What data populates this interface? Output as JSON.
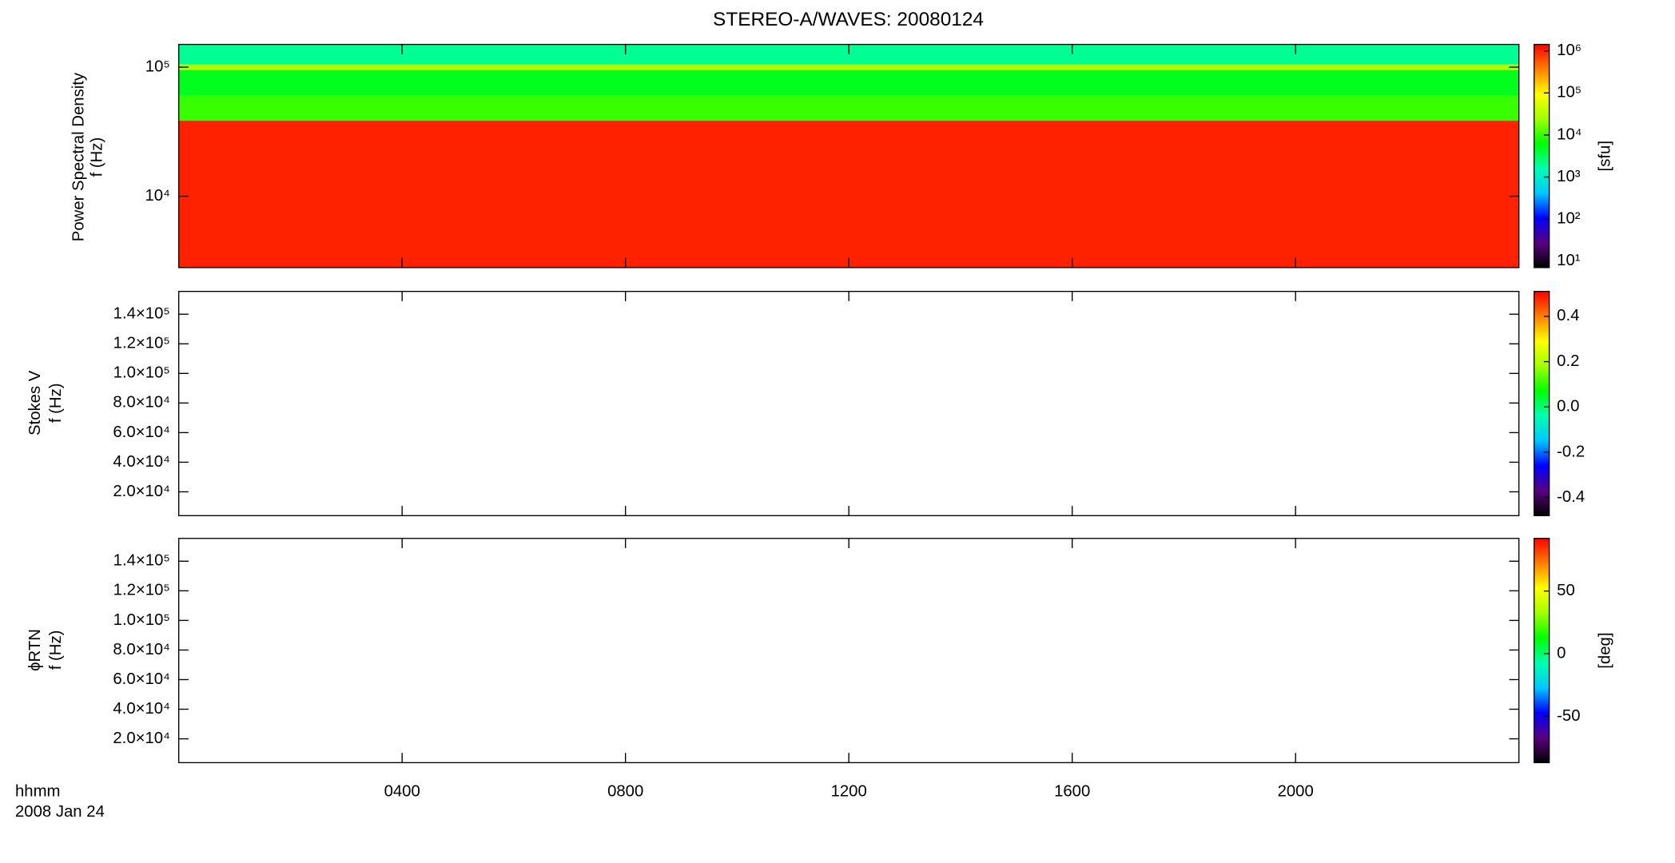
{
  "chart_data": [
    {
      "type": "spectrogram",
      "title": "STEREO-A/WAVES: 20080124",
      "ylabel": [
        "Power Spectral Density",
        "f (Hz)"
      ],
      "xlim": [
        0,
        24
      ],
      "ylim": [
        2800,
        150000
      ],
      "log_y": true,
      "yticks": [
        {
          "value": 10000,
          "label": "10⁴"
        },
        {
          "value": 100000,
          "label": "10⁵"
        }
      ],
      "bands": [
        {
          "flim": [
            2800,
            38500
          ],
          "value": 1000000
        },
        {
          "flim": [
            38500,
            60000
          ],
          "value": 10000
        },
        {
          "flim": [
            60000,
            95000
          ],
          "value": 5000
        },
        {
          "flim": [
            95000,
            105000
          ],
          "value": 30000
        },
        {
          "flim": [
            105000,
            150000
          ],
          "value": 2000
        }
      ],
      "colorbar": {
        "label": "[sfu]",
        "log": true,
        "zlim": [
          7,
          1430000
        ],
        "ticks": [
          {
            "value": 10,
            "label": "10¹"
          },
          {
            "value": 100,
            "label": "10²"
          },
          {
            "value": 1000,
            "label": "10³"
          },
          {
            "value": 10000,
            "label": "10⁴"
          },
          {
            "value": 100000,
            "label": "10⁵"
          },
          {
            "value": 1000000,
            "label": "10⁶"
          }
        ]
      },
      "colormap": [
        "#000000",
        "#5a0080",
        "#0000ff",
        "#00c8ff",
        "#00ffb0",
        "#00ff00",
        "#a0ff00",
        "#ffff00",
        "#ff8000",
        "#ff0000"
      ]
    },
    {
      "type": "spectrogram",
      "ylabel": [
        "Stokes V",
        "f (Hz)"
      ],
      "xlim": [
        0,
        24
      ],
      "ylim": [
        3900,
        155400
      ],
      "log_y": false,
      "yticks": [
        {
          "value": 20000,
          "label": "2.0×10⁴"
        },
        {
          "value": 40000,
          "label": "4.0×10⁴"
        },
        {
          "value": 60000,
          "label": "6.0×10⁴"
        },
        {
          "value": 80000,
          "label": "8.0×10⁴"
        },
        {
          "value": 100000,
          "label": "1.0×10⁵"
        },
        {
          "value": 120000,
          "label": "1.2×10⁵"
        },
        {
          "value": 140000,
          "label": "1.4×10⁵"
        }
      ],
      "bands": [],
      "colorbar": {
        "log": false,
        "zlim": [
          -0.48,
          0.51
        ],
        "ticks": [
          {
            "value": -0.4,
            "label": "-0.4"
          },
          {
            "value": -0.2,
            "label": "-0.2"
          },
          {
            "value": 0,
            "label": "0.0"
          },
          {
            "value": 0.2,
            "label": "0.2"
          },
          {
            "value": 0.4,
            "label": "0.4"
          }
        ]
      },
      "colormap": [
        "#000000",
        "#5a0080",
        "#0000ff",
        "#00c8ff",
        "#00ffb0",
        "#00ff00",
        "#a0ff00",
        "#ffff00",
        "#ff8000",
        "#ff0000"
      ]
    },
    {
      "type": "spectrogram",
      "ylabel": [
        "ϕRTN",
        "f (Hz)"
      ],
      "xlim": [
        0,
        24
      ],
      "ylim": [
        3900,
        155400
      ],
      "log_y": false,
      "xticks": [
        {
          "value": 4,
          "label": "0400"
        },
        {
          "value": 8,
          "label": "0800"
        },
        {
          "value": 12,
          "label": "1200"
        },
        {
          "value": 16,
          "label": "1600"
        },
        {
          "value": 20,
          "label": "2000"
        }
      ],
      "xlabel": [
        "hhmm",
        "2008 Jan 24"
      ],
      "yticks": [
        {
          "value": 20000,
          "label": "2.0×10⁴"
        },
        {
          "value": 40000,
          "label": "4.0×10⁴"
        },
        {
          "value": 60000,
          "label": "6.0×10⁴"
        },
        {
          "value": 80000,
          "label": "8.0×10⁴"
        },
        {
          "value": 100000,
          "label": "1.0×10⁵"
        },
        {
          "value": 120000,
          "label": "1.2×10⁵"
        },
        {
          "value": 140000,
          "label": "1.4×10⁵"
        }
      ],
      "bands": [],
      "colorbar": {
        "label": "[deg]",
        "log": false,
        "zlim": [
          -87,
          92
        ],
        "ticks": [
          {
            "value": -50,
            "label": "-50"
          },
          {
            "value": 0,
            "label": "0"
          },
          {
            "value": 50,
            "label": "50"
          }
        ]
      },
      "colormap": [
        "#000000",
        "#5a0080",
        "#0000ff",
        "#00c8ff",
        "#00ffb0",
        "#00ff00",
        "#a0ff00",
        "#ffff00",
        "#ff8000",
        "#ff0000"
      ]
    }
  ]
}
